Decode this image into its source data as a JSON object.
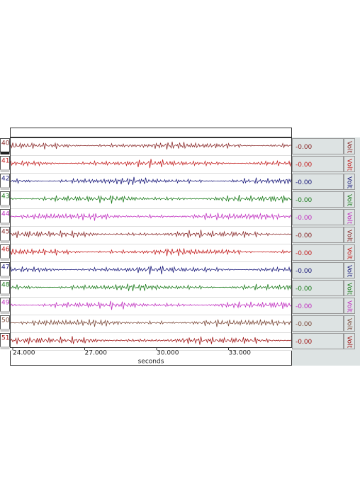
{
  "channels": [
    {
      "label": "40",
      "value": "-0.00",
      "unit": "Volt",
      "color": "#8b2b2b"
    },
    {
      "label": "41",
      "value": "-0.00",
      "unit": "Volt",
      "color": "#c42020"
    },
    {
      "label": "42",
      "value": "-0.00",
      "unit": "Volt",
      "color": "#1c1c7c"
    },
    {
      "label": "43",
      "value": "-0.00",
      "unit": "Volt",
      "color": "#1c7c1c"
    },
    {
      "label": "44",
      "value": "-0.00",
      "unit": "Volt",
      "color": "#c030c0"
    },
    {
      "label": "45",
      "value": "-0.00",
      "unit": "Volt",
      "color": "#8b2b2b"
    },
    {
      "label": "46",
      "value": "-0.00",
      "unit": "Volt",
      "color": "#c42020"
    },
    {
      "label": "47",
      "value": "-0.00",
      "unit": "Volt",
      "color": "#1c1c7c"
    },
    {
      "label": "48",
      "value": "-0.00",
      "unit": "Volt",
      "color": "#1c7c1c"
    },
    {
      "label": "49",
      "value": "-0.00",
      "unit": "Volt",
      "color": "#c030c0"
    },
    {
      "label": "50",
      "value": "-0.00",
      "unit": "Volt",
      "color": "#7c4a3a"
    },
    {
      "label": "51",
      "value": "-0.00",
      "unit": "Volt",
      "color": "#a01818"
    }
  ],
  "axis": {
    "ticks": [
      "24.000",
      "27.000",
      "30.000",
      "33.000"
    ],
    "label": "seconds"
  }
}
